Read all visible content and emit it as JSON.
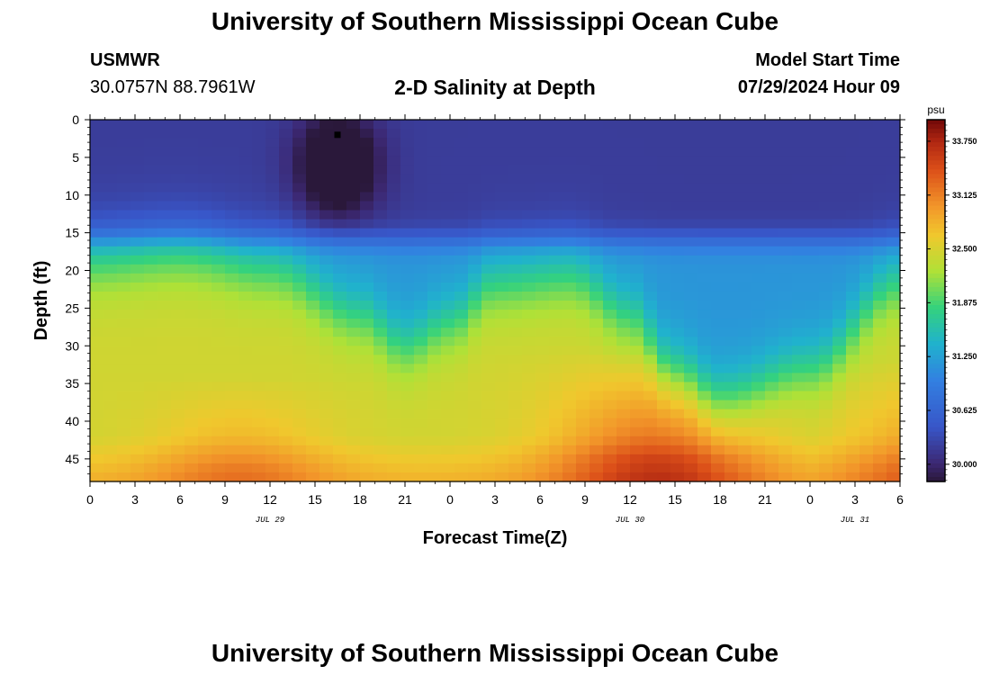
{
  "header": {
    "title": "University of Southern Mississippi Ocean Cube",
    "station": "USMWR",
    "coords": "30.0757N  88.7961W",
    "plot_title": "2-D Salinity at Depth",
    "model_start_label": "Model Start Time",
    "model_start_value": "07/29/2024 Hour 09"
  },
  "footer": {
    "title": "University of Southern Mississippi Ocean Cube"
  },
  "chart_data": {
    "type": "heatmap",
    "title": "2-D Salinity at Depth",
    "xlabel": "Forecast Time(Z)",
    "ylabel": "Depth (ft)",
    "x_ticks": [
      "0",
      "3",
      "6",
      "9",
      "12",
      "15",
      "18",
      "21",
      "0",
      "3",
      "6",
      "9",
      "12",
      "15",
      "18",
      "21",
      "0",
      "3",
      "6"
    ],
    "x_range_hours": [
      0,
      54
    ],
    "date_labels": [
      {
        "label": "JUL 29",
        "hour": 12
      },
      {
        "label": "JUL 30",
        "hour": 36
      },
      {
        "label": "JUL 31",
        "hour": 51
      }
    ],
    "y_ticks": [
      "0",
      "5",
      "10",
      "15",
      "20",
      "25",
      "30",
      "35",
      "40",
      "45"
    ],
    "ylim": [
      0,
      48
    ],
    "colorbar": {
      "unit": "psu",
      "ticks": [
        "33.750",
        "33.125",
        "32.500",
        "31.875",
        "31.250",
        "30.625",
        "30.000"
      ],
      "range": [
        29.8,
        34.0
      ]
    },
    "marker": {
      "hour": 16.5,
      "depth_ft": 2
    },
    "surface_salinity_psu": 30.2,
    "fresh_core": {
      "center_hour": 16.5,
      "depth_ft": 6,
      "min_psu": 29.8
    },
    "halocline_depth_ft_by_hour": [
      {
        "hour": 0,
        "depth": 19
      },
      {
        "hour": 6,
        "depth": 18
      },
      {
        "hour": 12,
        "depth": 20
      },
      {
        "hour": 18,
        "depth": 26
      },
      {
        "hour": 21,
        "depth": 30
      },
      {
        "hour": 24,
        "depth": 27
      },
      {
        "hour": 27,
        "depth": 22
      },
      {
        "hour": 32,
        "depth": 21
      },
      {
        "hour": 36,
        "depth": 26
      },
      {
        "hour": 39,
        "depth": 33
      },
      {
        "hour": 42,
        "depth": 37
      },
      {
        "hour": 48,
        "depth": 33
      },
      {
        "hour": 54,
        "depth": 22
      }
    ],
    "deep_max": {
      "center_hour": 38,
      "depth_ft": 45,
      "max_psu": 33.9
    }
  }
}
